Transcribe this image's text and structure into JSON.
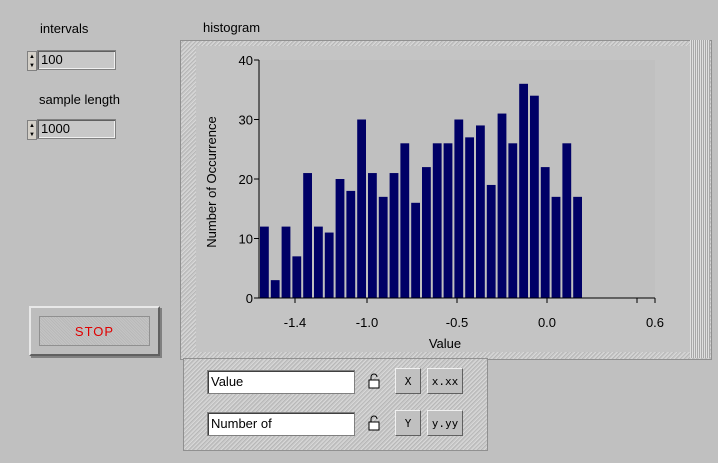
{
  "controls": {
    "intervals": {
      "label": "intervals",
      "value": "100"
    },
    "sample_length": {
      "label": "sample length",
      "value": "1000"
    },
    "stop_button": {
      "label": "STOP"
    }
  },
  "graph": {
    "title": "histogram",
    "accent_color": "#000066"
  },
  "chart_data": {
    "type": "bar",
    "xlabel": "Value",
    "ylabel": "Number of Occurrence",
    "xlim": [
      -1.6,
      0.6
    ],
    "ylim": [
      0,
      40
    ],
    "x_ticks": [
      -1.4,
      -1.0,
      -0.5,
      0.0,
      0.5,
      0.6
    ],
    "x_tick_labels": [
      "-1.4",
      "-1.0",
      "-0.5",
      "0.0",
      "",
      "0.6"
    ],
    "y_ticks": [
      0,
      10,
      20,
      30,
      40
    ],
    "y_tick_labels": [
      "0",
      "10",
      "20",
      "30",
      "40"
    ],
    "bin_start": -1.6,
    "bin_width": 0.06,
    "values": [
      12,
      3,
      12,
      7,
      21,
      12,
      11,
      20,
      18,
      30,
      21,
      17,
      21,
      26,
      16,
      22,
      26,
      26,
      30,
      27,
      29,
      19,
      31,
      26,
      36,
      34,
      22,
      17,
      26,
      17
    ],
    "grid": false
  },
  "legend": {
    "x_name": "Value",
    "y_name": "Number of",
    "x_tool": "X",
    "y_tool": "Y",
    "x_format": "x.xx",
    "y_format": "y.yy"
  },
  "icons": {
    "lock": "padlock-icon",
    "x_scale": "autoscale-x-icon",
    "y_scale": "autoscale-y-icon",
    "x_format": "format-x-icon",
    "y_format": "format-y-icon"
  }
}
